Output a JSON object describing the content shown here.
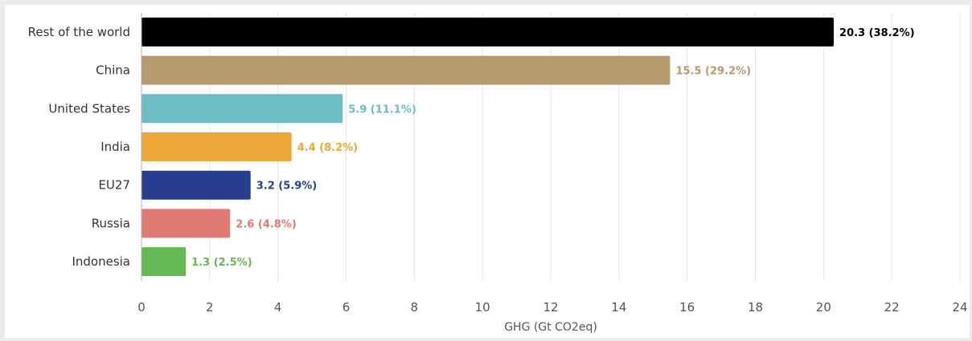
{
  "chart_data": {
    "type": "bar",
    "orientation": "horizontal",
    "title": "",
    "xlabel": "GHG (Gt CO2eq)",
    "ylabel": "",
    "xlim": [
      0,
      24
    ],
    "xticks": [
      "0",
      "2",
      "4",
      "6",
      "8",
      "10",
      "12",
      "14",
      "16",
      "18",
      "20",
      "22",
      "24"
    ],
    "grid": true,
    "legend": "none",
    "categories": [
      "Rest of the world",
      "China",
      "United States",
      "India",
      "EU27",
      "Russia",
      "Indonesia"
    ],
    "values": [
      20.3,
      15.5,
      5.9,
      4.4,
      3.2,
      2.6,
      1.3
    ],
    "data_labels": [
      "20.3 (38.2%)",
      "15.5 (29.2%)",
      "5.9 (11.1%)",
      "4.4 (8.2%)",
      "3.2 (5.9%)",
      "2.6 (4.8%)",
      "1.3 (2.5%)"
    ],
    "colors": [
      "#000000",
      "#b59a6d",
      "#6bbcc3",
      "#eba737",
      "#283f8f",
      "#df7b73",
      "#65b952"
    ]
  }
}
